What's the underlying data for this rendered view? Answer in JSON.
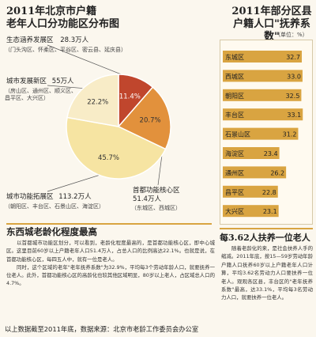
{
  "left_chart": {
    "title_line1": "2011年北京市户籍",
    "title_line2": "老年人口分功能区分布图",
    "unit_suffix": "万人",
    "regions": [
      {
        "name": "生态涵养发展区",
        "value": "28.3",
        "sub": "（门头沟区、怀柔区、平谷区、密云县、延庆县）"
      },
      {
        "name": "城市发展新区",
        "value": "55",
        "sub_lines": [
          "（房山区、通州区、顺义区、",
          "昌平区、大兴区）"
        ]
      },
      {
        "name": "城市功能拓展区",
        "value": "113.2",
        "sub": "（朝阳区、丰台区、石景山区、海淀区）"
      },
      {
        "name": "首都功能核心区",
        "value": "51.4",
        "sub": "（东城区、西城区）"
      }
    ],
    "slice_colors": [
      "#c0462d",
      "#e2913c",
      "#f6e4a2",
      "#f8ecc7"
    ]
  },
  "right_chart": {
    "title_line1": "2011年部分区县",
    "title_line2": "户籍人口\"抚养系数\"",
    "unit": "（单位：%）",
    "bar_color": "#d9a441"
  },
  "chart_data": [
    {
      "type": "pie",
      "title": "2011年北京市户籍老年人口分功能区分布图",
      "categories": [
        "生态涵养发展区",
        "首都功能核心区",
        "城市功能拓展区",
        "城市发展新区"
      ],
      "values": [
        11.4,
        20.7,
        45.7,
        22.2
      ],
      "labels": [
        "11.4%",
        "20.7%",
        "45.7%",
        "22.2%"
      ]
    },
    {
      "type": "bar",
      "orientation": "horizontal",
      "title": "2011年部分区县户籍人口\"抚养系数\"",
      "unit": "%",
      "categories": [
        "东城区",
        "西城区",
        "朝阳区",
        "丰台区",
        "石景山区",
        "海淀区",
        "通州区",
        "昌平区",
        "大兴区"
      ],
      "values": [
        32.7,
        33.0,
        32.5,
        33.1,
        31.2,
        23.4,
        26.2,
        22.8,
        23.1
      ],
      "labels": [
        "32.7",
        "33.0",
        "32.5",
        "33.1",
        "31.2",
        "23.4",
        "26.2",
        "22.8",
        "23.1"
      ]
    }
  ],
  "article_left": {
    "headline": "东西城老龄化程度最高",
    "paragraphs": [
      "以首都城市功能区划分，可以看到，老龄化程度最高的，是首都功能核心区，即中心城区。这里目前60岁以上户籍老年人口51.4万人，占总人口的比例高达22.1%。也就是说，在首都功能核心区，每四五人中，就有一位是老人。",
      "同时，这个区域的老年\"老年抚养系数\"为32.9%，平均每3个劳动年龄人口，就要抚养一位老人。此外，首都功能核心区的高龄化也较其他区域明显，80岁以上老人，占区域总人口的4.7%。"
    ]
  },
  "article_right": {
    "headline": "每3.62人扶养一位老人",
    "paragraph": "随着老龄化的来，是社会扶养人手的缩减。2011年底，按15—59岁劳动年龄户籍人口抚养60岁以上户籍老年人口计算，平均3.62名劳动力人口要扶养一位老人。观观各区县，丰台区的\"老年抚养系数\"最高，达33.1%，平均每3名劳动力人口，就要扶养一位老人。"
  },
  "footer": "以上数据截至2011年底，数据来源：北京市老龄工作委员会办公室"
}
